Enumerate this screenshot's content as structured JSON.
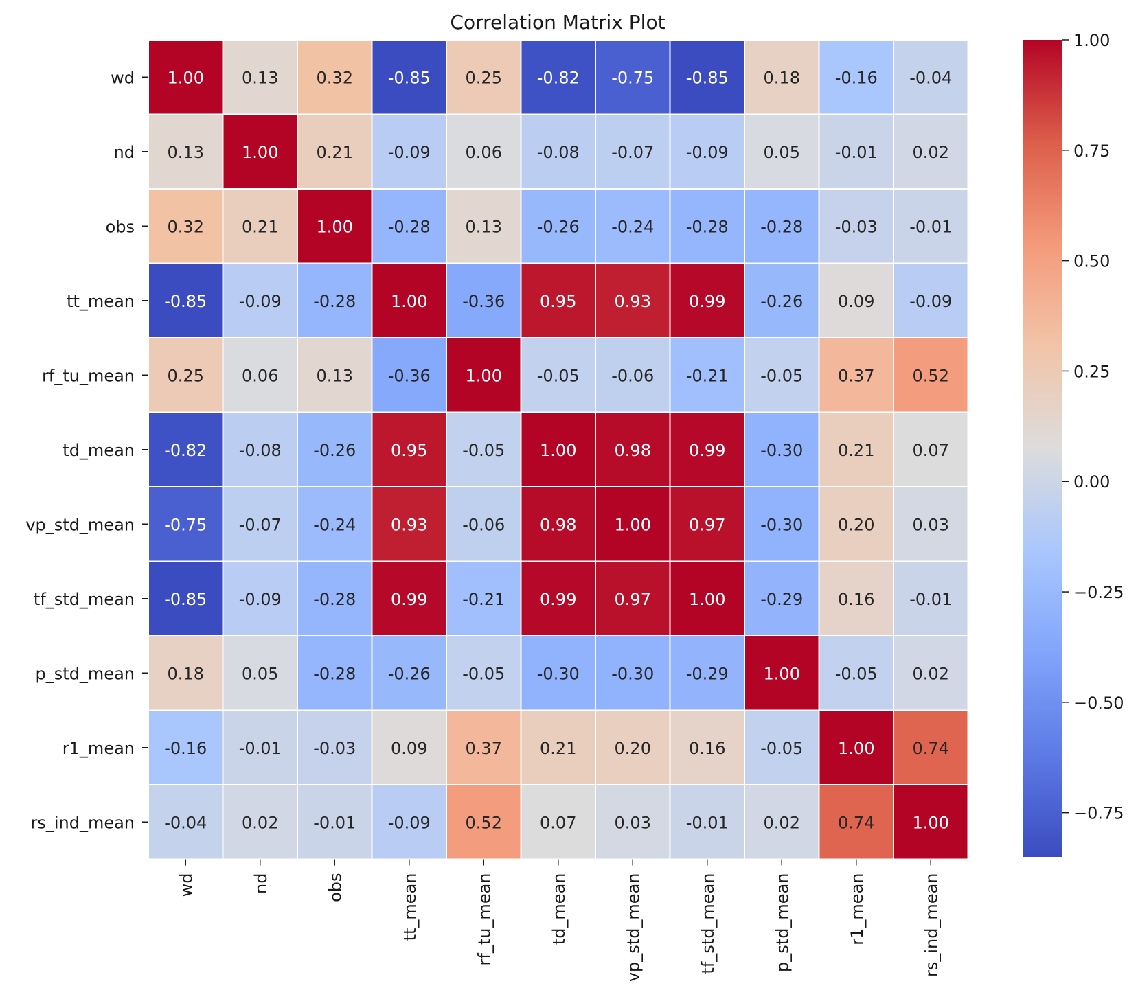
{
  "chart_data": {
    "type": "heatmap",
    "title": "Correlation Matrix Plot",
    "xlabel": "",
    "ylabel": "",
    "labels": [
      "wd",
      "nd",
      "obs",
      "tt_mean",
      "rf_tu_mean",
      "td_mean",
      "vp_std_mean",
      "tf_std_mean",
      "p_std_mean",
      "r1_mean",
      "rs_ind_mean"
    ],
    "matrix": [
      [
        1.0,
        0.13,
        0.32,
        -0.85,
        0.25,
        -0.82,
        -0.75,
        -0.85,
        0.18,
        -0.16,
        -0.04
      ],
      [
        0.13,
        1.0,
        0.21,
        -0.09,
        0.06,
        -0.08,
        -0.07,
        -0.09,
        0.05,
        -0.01,
        0.02
      ],
      [
        0.32,
        0.21,
        1.0,
        -0.28,
        0.13,
        -0.26,
        -0.24,
        -0.28,
        -0.28,
        -0.03,
        -0.01
      ],
      [
        -0.85,
        -0.09,
        -0.28,
        1.0,
        -0.36,
        0.95,
        0.93,
        0.99,
        -0.26,
        0.09,
        -0.09
      ],
      [
        0.25,
        0.06,
        0.13,
        -0.36,
        1.0,
        -0.05,
        -0.06,
        -0.21,
        -0.05,
        0.37,
        0.52
      ],
      [
        -0.82,
        -0.08,
        -0.26,
        0.95,
        -0.05,
        1.0,
        0.98,
        0.99,
        -0.3,
        0.21,
        0.07
      ],
      [
        -0.75,
        -0.07,
        -0.24,
        0.93,
        -0.06,
        0.98,
        1.0,
        0.97,
        -0.3,
        0.2,
        0.03
      ],
      [
        -0.85,
        -0.09,
        -0.28,
        0.99,
        -0.21,
        0.99,
        0.97,
        1.0,
        -0.29,
        0.16,
        -0.01
      ],
      [
        0.18,
        0.05,
        -0.28,
        -0.26,
        -0.05,
        -0.3,
        -0.3,
        -0.29,
        1.0,
        -0.05,
        0.02
      ],
      [
        -0.16,
        -0.01,
        -0.03,
        0.09,
        0.37,
        0.21,
        0.2,
        0.16,
        -0.05,
        1.0,
        0.74
      ],
      [
        -0.04,
        0.02,
        -0.01,
        -0.09,
        0.52,
        0.07,
        0.03,
        -0.01,
        0.02,
        0.74,
        1.0
      ]
    ],
    "colormap": "coolwarm",
    "vmin": -0.85,
    "vmax": 1.0,
    "colorbar_ticks": [
      1.0,
      0.75,
      0.5,
      0.25,
      0.0,
      -0.25,
      -0.5,
      -0.75
    ],
    "colorbar_tick_labels": [
      "1.00",
      "0.75",
      "0.50",
      "0.25",
      "0.00",
      "−0.25",
      "−0.50",
      "−0.75"
    ],
    "value_format": "2 decimals",
    "grid_lines": "white",
    "legend": "colorbar-right"
  }
}
